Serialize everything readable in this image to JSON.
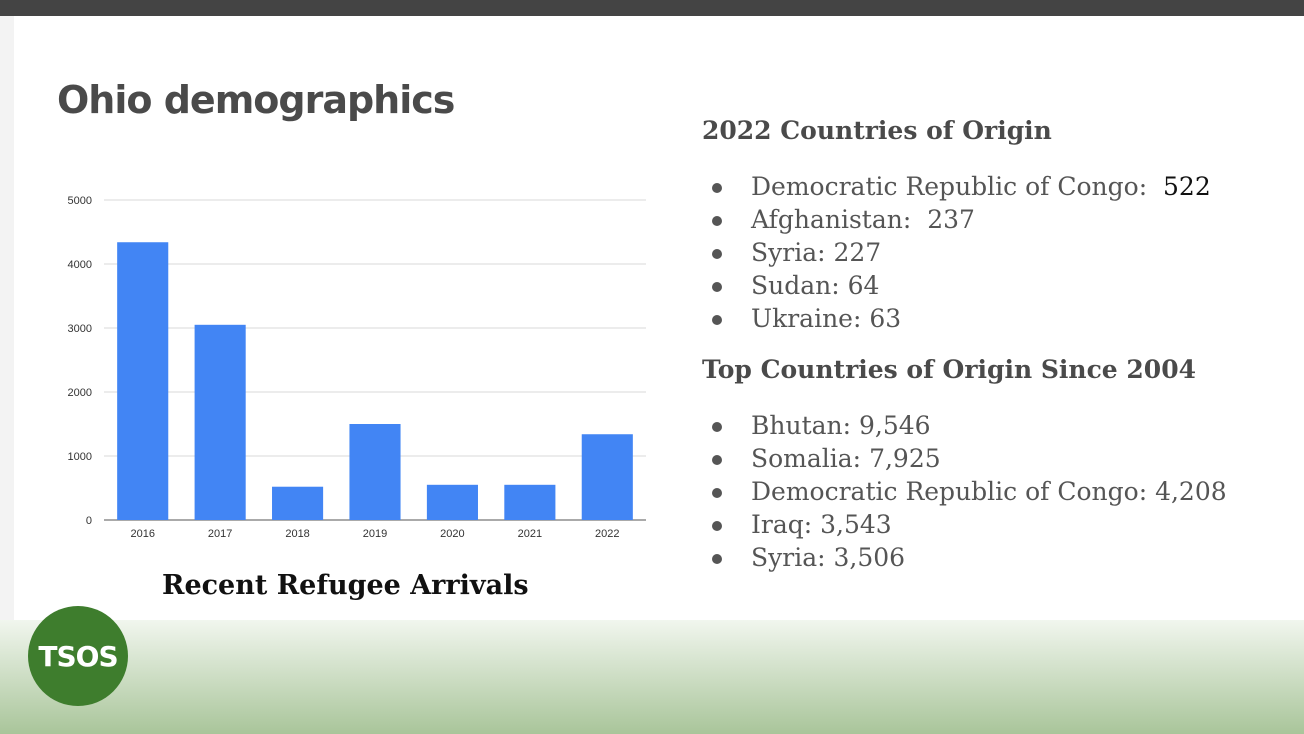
{
  "slide": {
    "title": "Ohio demographics",
    "logo_text": "TSOS"
  },
  "chart_caption": "Recent Refugee Arrivals",
  "chart_data": {
    "type": "bar",
    "title": "Recent Refugee Arrivals",
    "categories": [
      "2016",
      "2017",
      "2018",
      "2019",
      "2020",
      "2021",
      "2022"
    ],
    "values": [
      4340,
      3050,
      520,
      1500,
      550,
      550,
      1340
    ],
    "ylim": [
      0,
      5000
    ],
    "yticks": [
      0,
      1000,
      2000,
      3000,
      4000,
      5000
    ],
    "xlabel": "",
    "ylabel": "",
    "grid": true,
    "bar_color": "#4285f4"
  },
  "countries_2022": {
    "heading": "2022 Countries of Origin",
    "items": [
      {
        "name": "Democratic Republic of Congo:",
        "value": "522"
      },
      {
        "name": "Afghanistan:",
        "value": "237"
      },
      {
        "name": "Syria:",
        "value": "227"
      },
      {
        "name": "Sudan:",
        "value": "64"
      },
      {
        "name": "Ukraine:",
        "value": "63"
      }
    ]
  },
  "countries_since_2004": {
    "heading": "Top Countries of Origin Since 2004",
    "items": [
      {
        "name": "Bhutan:",
        "value": "9,546"
      },
      {
        "name": "Somalia:",
        "value": "7,925"
      },
      {
        "name": "Democratic Republic of Congo:",
        "value": "4,208"
      },
      {
        "name": "Iraq:",
        "value": "3,543"
      },
      {
        "name": "Syria:",
        "value": "3,506"
      }
    ]
  },
  "colors": {
    "title": "#4a4a4a",
    "logo_green": "#3e7d2d",
    "footer_band_light": "#f1f6ee",
    "footer_band_dark": "#a9c59a"
  }
}
